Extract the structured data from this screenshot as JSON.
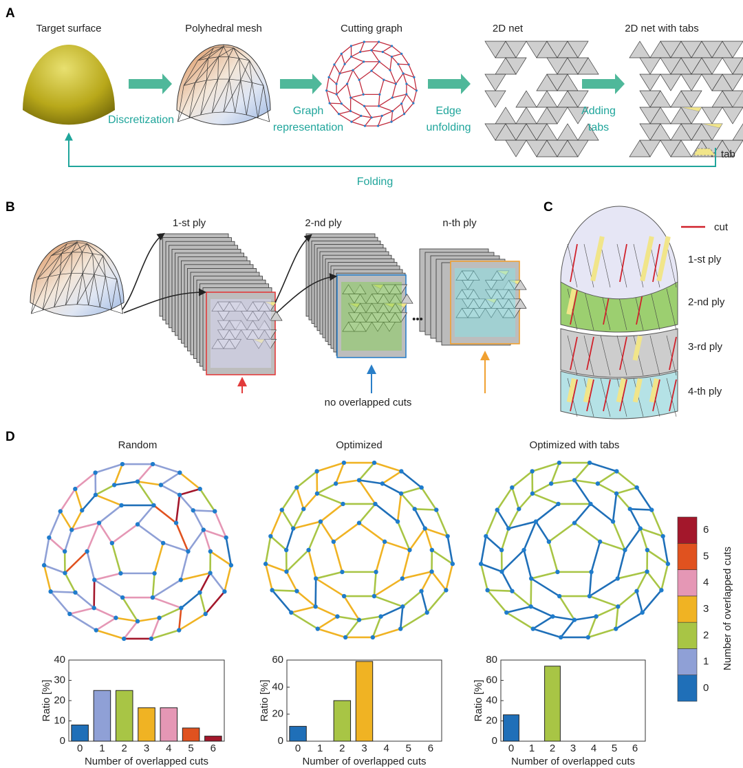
{
  "panel_a": {
    "label": "A",
    "steps": [
      "Target surface",
      "Polyhedral mesh",
      "Cutting graph",
      "2D net",
      "2D net with tabs"
    ],
    "transitions": [
      [
        "Discretization"
      ],
      [
        "Graph",
        "representation"
      ],
      [
        "Edge",
        "unfolding"
      ],
      [
        "Adding",
        "tabs"
      ]
    ],
    "feedback": "Folding",
    "legend": "tab"
  },
  "panel_b": {
    "label": "B",
    "plies": [
      "1-st ply",
      "2-nd ply",
      "n-th ply"
    ],
    "ellipsis": "•••",
    "note": "no overlapped cuts"
  },
  "panel_c": {
    "label": "C",
    "legend": "cut",
    "plies": [
      "1-st ply",
      "2-nd ply",
      "3-rd ply",
      "4-th ply"
    ]
  },
  "panel_d": {
    "label": "D",
    "colorbar": {
      "label": "Number of overlapped cuts",
      "ticks": [
        0,
        1,
        2,
        3,
        4,
        5,
        6
      ],
      "colors": [
        "#1f6fb8",
        "#8fa0d6",
        "#a8c545",
        "#f0b323",
        "#e597b5",
        "#e0521f",
        "#a3172b"
      ]
    }
  },
  "chart_data": [
    {
      "type": "bar",
      "title": "Random",
      "categories": [
        "0",
        "1",
        "2",
        "3",
        "4",
        "5",
        "6"
      ],
      "values": [
        8,
        25,
        25,
        16.5,
        16.5,
        6.5,
        2.5
      ],
      "colors": [
        "#1f6fb8",
        "#8fa0d6",
        "#a8c545",
        "#f0b323",
        "#e597b5",
        "#e0521f",
        "#a3172b"
      ],
      "xlabel": "Number of overlapped cuts",
      "ylabel": "Ratio [%]",
      "ylim": [
        0,
        40
      ],
      "yticks": [
        0,
        10,
        20,
        30,
        40
      ]
    },
    {
      "type": "bar",
      "title": "Optimized",
      "categories": [
        "0",
        "1",
        "2",
        "3",
        "4",
        "5",
        "6"
      ],
      "values": [
        11,
        0,
        30,
        59,
        0,
        0,
        0
      ],
      "colors": [
        "#1f6fb8",
        "#8fa0d6",
        "#a8c545",
        "#f0b323",
        "#e597b5",
        "#e0521f",
        "#a3172b"
      ],
      "xlabel": "Number of overlapped cuts",
      "ylabel": "Ratio [%]",
      "ylim": [
        0,
        60
      ],
      "yticks": [
        0,
        20,
        40,
        60
      ]
    },
    {
      "type": "bar",
      "title": "Optimized with tabs",
      "categories": [
        "0",
        "1",
        "2",
        "3",
        "4",
        "5",
        "6"
      ],
      "values": [
        26,
        0,
        74,
        0,
        0,
        0,
        0
      ],
      "colors": [
        "#1f6fb8",
        "#8fa0d6",
        "#a8c545",
        "#f0b323",
        "#e597b5",
        "#e0521f",
        "#a3172b"
      ],
      "xlabel": "Number of overlapped cuts",
      "ylabel": "Ratio [%]",
      "ylim": [
        0,
        80
      ],
      "yticks": [
        0,
        20,
        40,
        60,
        80
      ]
    }
  ]
}
